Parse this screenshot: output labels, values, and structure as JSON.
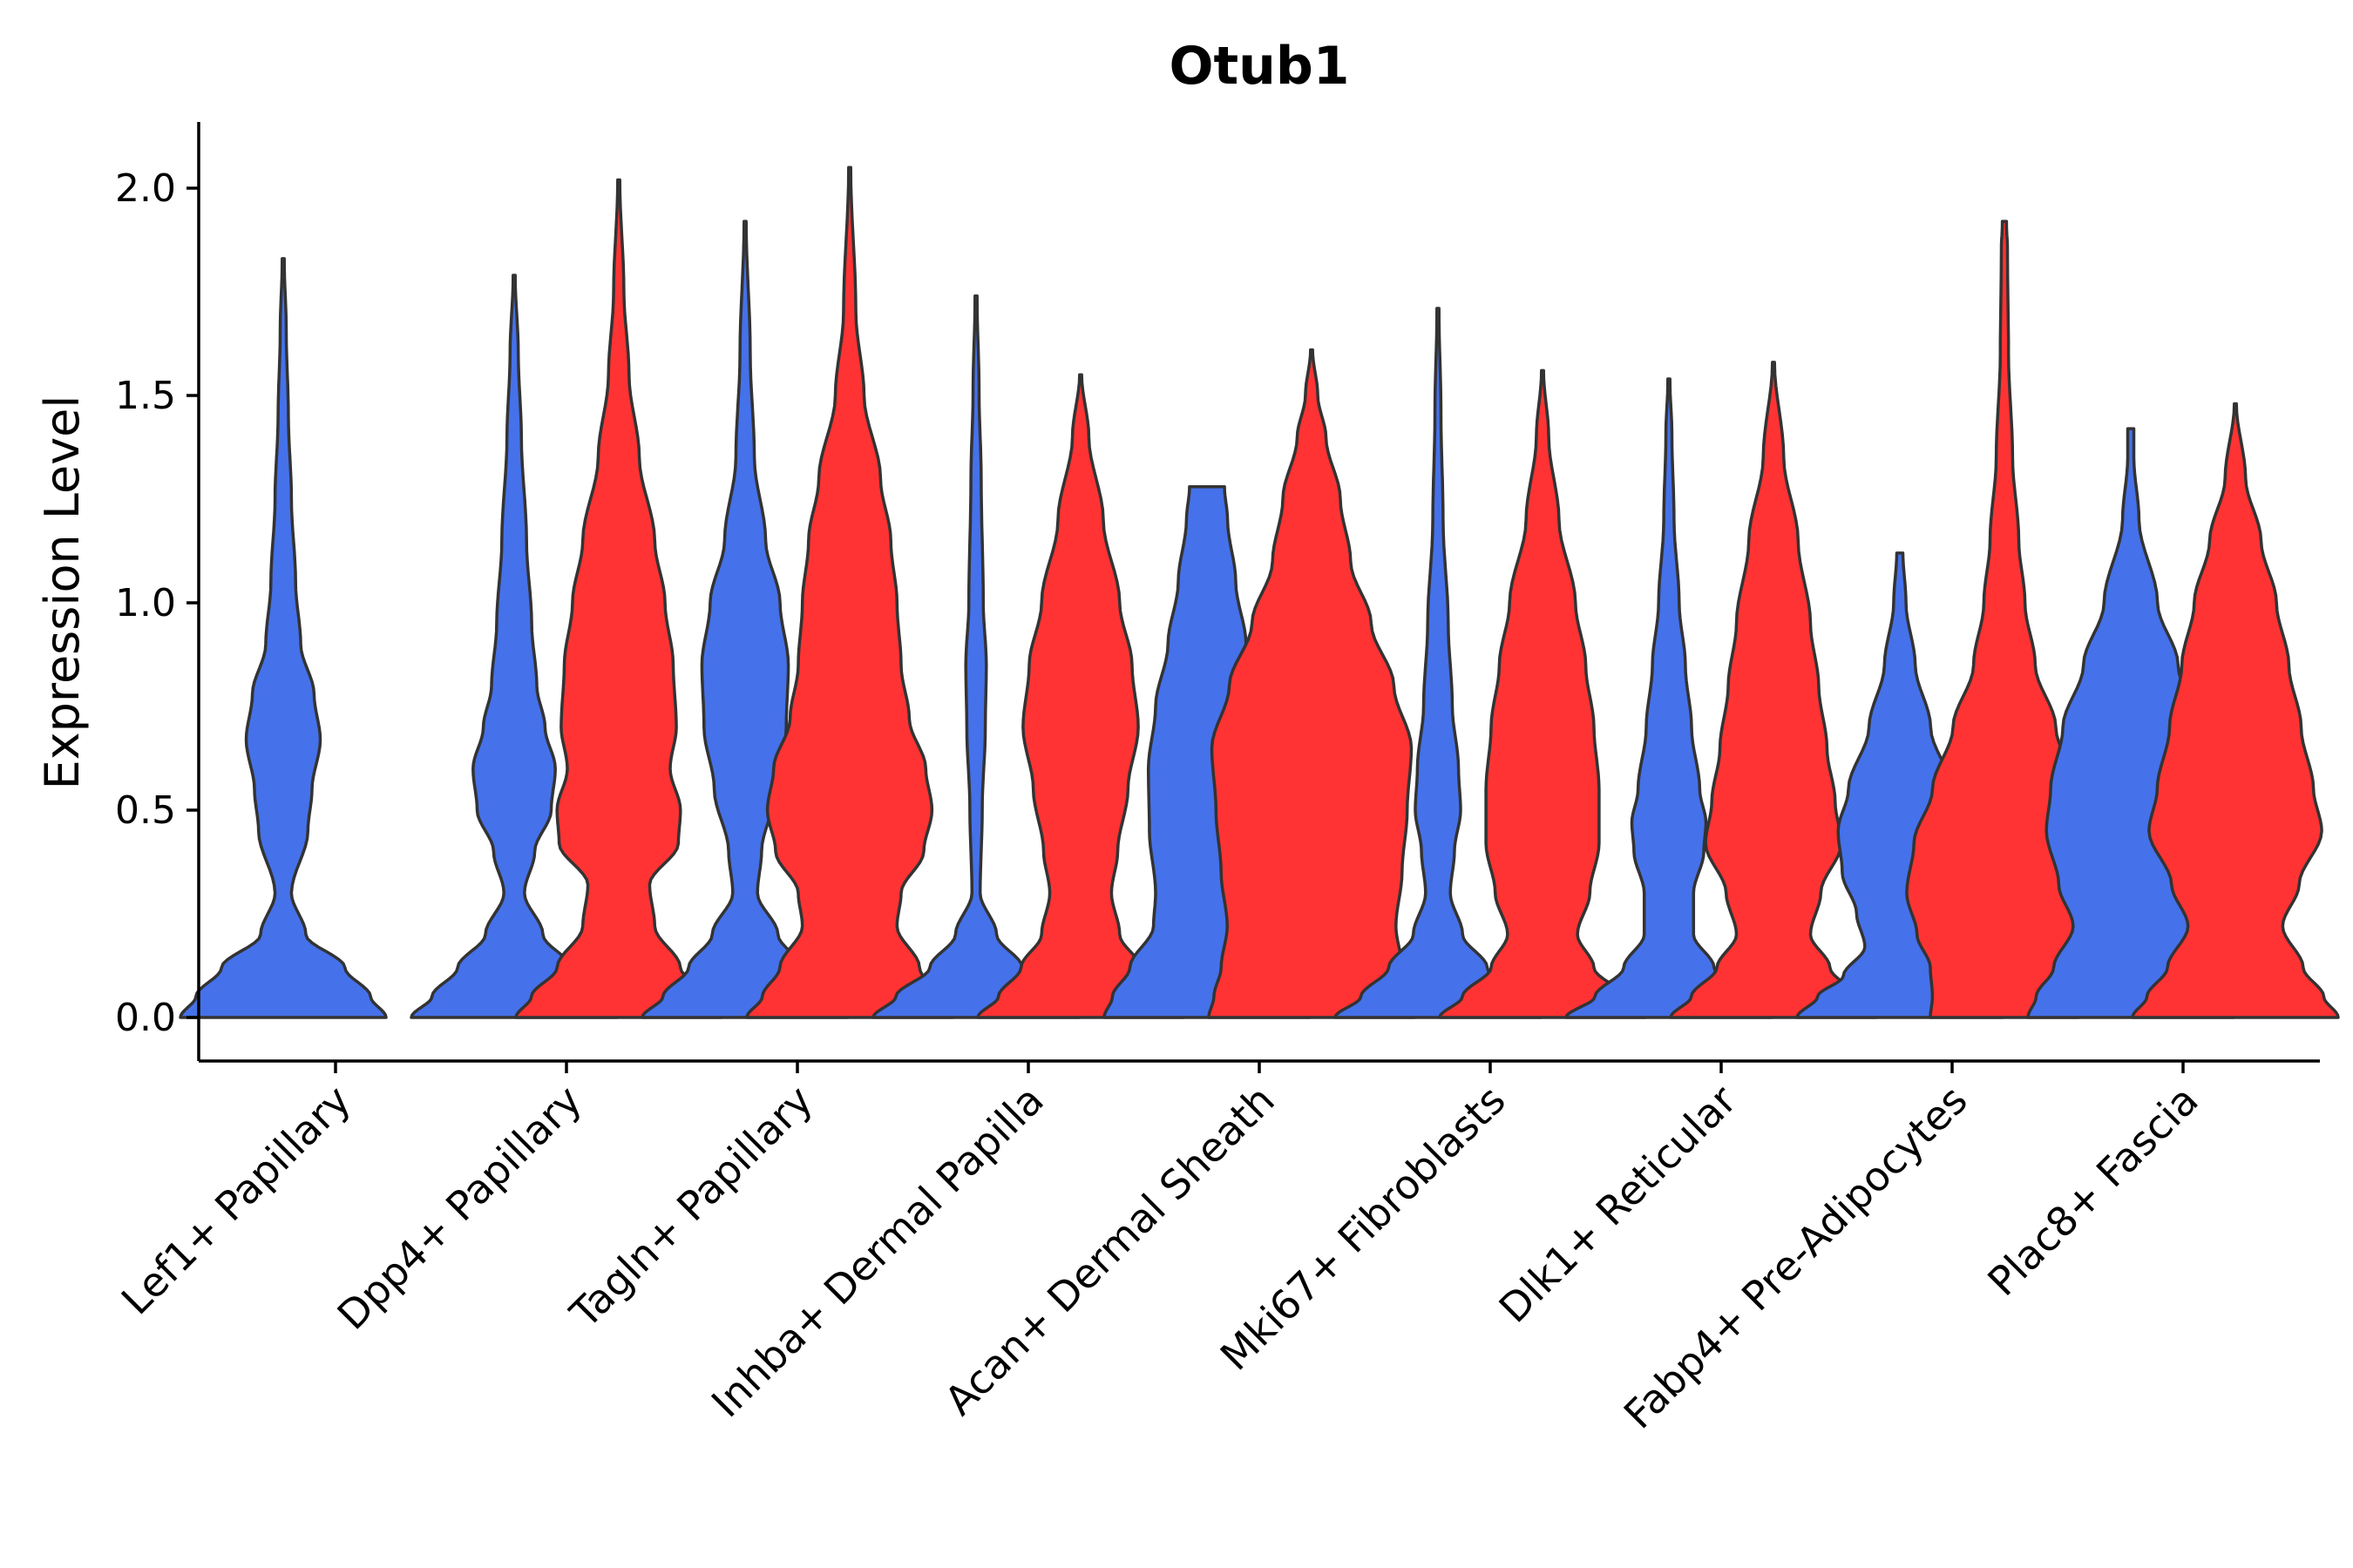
{
  "chart_data": {
    "type": "violin",
    "title": "Otub1",
    "xlabel": "",
    "ylabel": "Expression Level",
    "ylim": [
      -0.1,
      2.15
    ],
    "yticks": [
      0.0,
      0.5,
      1.0,
      1.5,
      2.0
    ],
    "ytick_labels": [
      "0.0",
      "0.5",
      "1.0",
      "1.5",
      "2.0"
    ],
    "series_colors": {
      "group1": "#4571EA",
      "group2": "#FF3333"
    },
    "categories": [
      "Lef1+ Papillary",
      "Dpp4+ Papillary",
      "Tagln+ Papillary",
      "Inhba+ Dermal Papilla",
      "Acan+ Dermal Sheath",
      "Mki67+ Fibroblasts",
      "Dlk1+ Reticular",
      "Fabp4+ Pre-Adipocytes",
      "Plac8+ Fascia"
    ],
    "violins": [
      {
        "category": "Lef1+ Papillary",
        "group": "group1",
        "max": 1.83,
        "profile": [
          [
            0,
            1
          ],
          [
            0.05,
            0.85
          ],
          [
            0.12,
            0.6
          ],
          [
            0.2,
            0.22
          ],
          [
            0.3,
            0.08
          ],
          [
            0.45,
            0.24
          ],
          [
            0.55,
            0.28
          ],
          [
            0.67,
            0.36
          ],
          [
            0.78,
            0.3
          ],
          [
            0.9,
            0.17
          ],
          [
            1.05,
            0.12
          ],
          [
            1.25,
            0.08
          ],
          [
            1.45,
            0.05
          ],
          [
            1.65,
            0.03
          ],
          [
            1.83,
            0.01
          ]
        ]
      },
      {
        "category": "Dpp4+ Papillary",
        "group": "group1",
        "max": 1.79,
        "profile": [
          [
            0,
            1
          ],
          [
            0.05,
            0.8
          ],
          [
            0.12,
            0.55
          ],
          [
            0.2,
            0.28
          ],
          [
            0.3,
            0.1
          ],
          [
            0.4,
            0.2
          ],
          [
            0.5,
            0.36
          ],
          [
            0.6,
            0.4
          ],
          [
            0.7,
            0.3
          ],
          [
            0.8,
            0.22
          ],
          [
            0.95,
            0.17
          ],
          [
            1.15,
            0.12
          ],
          [
            1.4,
            0.07
          ],
          [
            1.6,
            0.04
          ],
          [
            1.79,
            0.01
          ]
        ]
      },
      {
        "category": "Dpp4+ Papillary",
        "group": "group2",
        "max": 2.02,
        "profile": [
          [
            0,
            1
          ],
          [
            0.05,
            0.85
          ],
          [
            0.12,
            0.6
          ],
          [
            0.22,
            0.35
          ],
          [
            0.32,
            0.3
          ],
          [
            0.42,
            0.58
          ],
          [
            0.5,
            0.6
          ],
          [
            0.6,
            0.5
          ],
          [
            0.7,
            0.56
          ],
          [
            0.85,
            0.53
          ],
          [
            1.0,
            0.45
          ],
          [
            1.15,
            0.35
          ],
          [
            1.35,
            0.2
          ],
          [
            1.55,
            0.1
          ],
          [
            1.75,
            0.05
          ],
          [
            2.02,
            0.01
          ]
        ]
      },
      {
        "category": "Tagln+ Papillary",
        "group": "group1",
        "max": 1.92,
        "profile": [
          [
            0,
            1
          ],
          [
            0.05,
            0.8
          ],
          [
            0.12,
            0.55
          ],
          [
            0.2,
            0.32
          ],
          [
            0.3,
            0.12
          ],
          [
            0.4,
            0.16
          ],
          [
            0.55,
            0.3
          ],
          [
            0.7,
            0.4
          ],
          [
            0.85,
            0.42
          ],
          [
            1.0,
            0.34
          ],
          [
            1.15,
            0.2
          ],
          [
            1.35,
            0.09
          ],
          [
            1.6,
            0.05
          ],
          [
            1.92,
            0.01
          ]
        ]
      },
      {
        "category": "Tagln+ Papillary",
        "group": "group2",
        "max": 2.05,
        "profile": [
          [
            0,
            1
          ],
          [
            0.05,
            0.85
          ],
          [
            0.12,
            0.68
          ],
          [
            0.22,
            0.46
          ],
          [
            0.3,
            0.5
          ],
          [
            0.4,
            0.72
          ],
          [
            0.5,
            0.8
          ],
          [
            0.6,
            0.74
          ],
          [
            0.72,
            0.58
          ],
          [
            0.85,
            0.5
          ],
          [
            1.0,
            0.46
          ],
          [
            1.15,
            0.4
          ],
          [
            1.3,
            0.3
          ],
          [
            1.5,
            0.14
          ],
          [
            1.7,
            0.06
          ],
          [
            2.05,
            0.01
          ]
        ]
      },
      {
        "category": "Inhba+ Dermal Papilla",
        "group": "group1",
        "max": 1.74,
        "profile": [
          [
            0,
            1
          ],
          [
            0.05,
            0.78
          ],
          [
            0.12,
            0.45
          ],
          [
            0.2,
            0.2
          ],
          [
            0.3,
            0.04
          ],
          [
            0.5,
            0.06
          ],
          [
            0.7,
            0.09
          ],
          [
            0.85,
            0.1
          ],
          [
            1.0,
            0.07
          ],
          [
            1.3,
            0.05
          ],
          [
            1.5,
            0.03
          ],
          [
            1.74,
            0.01
          ]
        ]
      },
      {
        "category": "Inhba+ Dermal Papilla",
        "group": "group2",
        "max": 1.55,
        "profile": [
          [
            0,
            1
          ],
          [
            0.05,
            0.8
          ],
          [
            0.12,
            0.58
          ],
          [
            0.2,
            0.38
          ],
          [
            0.3,
            0.3
          ],
          [
            0.4,
            0.36
          ],
          [
            0.55,
            0.46
          ],
          [
            0.7,
            0.56
          ],
          [
            0.85,
            0.5
          ],
          [
            1.0,
            0.38
          ],
          [
            1.2,
            0.22
          ],
          [
            1.4,
            0.08
          ],
          [
            1.55,
            0.01
          ]
        ]
      },
      {
        "category": "Acan+ Dermal Sheath",
        "group": "group1",
        "max": 1.28,
        "profile": [
          [
            0,
            1
          ],
          [
            0.05,
            0.92
          ],
          [
            0.12,
            0.75
          ],
          [
            0.22,
            0.52
          ],
          [
            0.3,
            0.5
          ],
          [
            0.45,
            0.56
          ],
          [
            0.6,
            0.57
          ],
          [
            0.75,
            0.5
          ],
          [
            0.9,
            0.38
          ],
          [
            1.05,
            0.28
          ],
          [
            1.2,
            0.2
          ],
          [
            1.28,
            0.17
          ]
        ]
      },
      {
        "category": "Acan+ Dermal Sheath",
        "group": "group2",
        "max": 1.61,
        "profile": [
          [
            0,
            1
          ],
          [
            0.05,
            0.95
          ],
          [
            0.12,
            0.88
          ],
          [
            0.22,
            0.82
          ],
          [
            0.35,
            0.88
          ],
          [
            0.5,
            0.93
          ],
          [
            0.65,
            0.97
          ],
          [
            0.8,
            0.8
          ],
          [
            0.95,
            0.58
          ],
          [
            1.1,
            0.38
          ],
          [
            1.25,
            0.28
          ],
          [
            1.4,
            0.14
          ],
          [
            1.5,
            0.06
          ],
          [
            1.61,
            0.01
          ]
        ]
      },
      {
        "category": "Mki67+ Fibroblasts",
        "group": "group1",
        "max": 1.71,
        "profile": [
          [
            0,
            1
          ],
          [
            0.05,
            0.75
          ],
          [
            0.12,
            0.48
          ],
          [
            0.2,
            0.24
          ],
          [
            0.3,
            0.12
          ],
          [
            0.4,
            0.16
          ],
          [
            0.5,
            0.22
          ],
          [
            0.6,
            0.2
          ],
          [
            0.75,
            0.14
          ],
          [
            0.95,
            0.1
          ],
          [
            1.2,
            0.05
          ],
          [
            1.45,
            0.03
          ],
          [
            1.71,
            0.01
          ]
        ]
      },
      {
        "category": "Mki67+ Fibroblasts",
        "group": "group2",
        "max": 1.56,
        "profile": [
          [
            0,
            1
          ],
          [
            0.05,
            0.78
          ],
          [
            0.12,
            0.5
          ],
          [
            0.2,
            0.34
          ],
          [
            0.3,
            0.46
          ],
          [
            0.42,
            0.55
          ],
          [
            0.55,
            0.55
          ],
          [
            0.7,
            0.5
          ],
          [
            0.85,
            0.42
          ],
          [
            1.0,
            0.32
          ],
          [
            1.2,
            0.16
          ],
          [
            1.4,
            0.06
          ],
          [
            1.56,
            0.01
          ]
        ]
      },
      {
        "category": "Dlk1+ Reticular",
        "group": "group1",
        "max": 1.54,
        "profile": [
          [
            0,
            1
          ],
          [
            0.05,
            0.72
          ],
          [
            0.12,
            0.44
          ],
          [
            0.2,
            0.24
          ],
          [
            0.3,
            0.24
          ],
          [
            0.4,
            0.34
          ],
          [
            0.47,
            0.36
          ],
          [
            0.55,
            0.3
          ],
          [
            0.7,
            0.22
          ],
          [
            0.85,
            0.16
          ],
          [
            1.0,
            0.1
          ],
          [
            1.2,
            0.05
          ],
          [
            1.4,
            0.03
          ],
          [
            1.54,
            0.01
          ]
        ]
      },
      {
        "category": "Dlk1+ Reticular",
        "group": "group2",
        "max": 1.58,
        "profile": [
          [
            0,
            1
          ],
          [
            0.05,
            0.8
          ],
          [
            0.12,
            0.55
          ],
          [
            0.2,
            0.36
          ],
          [
            0.3,
            0.46
          ],
          [
            0.42,
            0.66
          ],
          [
            0.52,
            0.6
          ],
          [
            0.65,
            0.52
          ],
          [
            0.8,
            0.44
          ],
          [
            0.95,
            0.36
          ],
          [
            1.15,
            0.24
          ],
          [
            1.35,
            0.1
          ],
          [
            1.58,
            0.01
          ]
        ]
      },
      {
        "category": "Fabp4+ Pre-Adipocytes",
        "group": "group1",
        "max": 1.12,
        "profile": [
          [
            0,
            1
          ],
          [
            0.05,
            0.8
          ],
          [
            0.1,
            0.55
          ],
          [
            0.17,
            0.34
          ],
          [
            0.25,
            0.42
          ],
          [
            0.35,
            0.56
          ],
          [
            0.45,
            0.6
          ],
          [
            0.55,
            0.5
          ],
          [
            0.7,
            0.3
          ],
          [
            0.85,
            0.15
          ],
          [
            1.0,
            0.06
          ],
          [
            1.12,
            0.03
          ]
        ]
      },
      {
        "category": "Fabp4+ Pre-Adipocytes",
        "group": "group2",
        "max": 1.92,
        "profile": [
          [
            0,
            0.72
          ],
          [
            0.05,
            0.7
          ],
          [
            0.12,
            0.72
          ],
          [
            0.2,
            0.85
          ],
          [
            0.3,
            0.95
          ],
          [
            0.42,
            0.88
          ],
          [
            0.55,
            0.7
          ],
          [
            0.7,
            0.5
          ],
          [
            0.85,
            0.3
          ],
          [
            1.0,
            0.2
          ],
          [
            1.15,
            0.14
          ],
          [
            1.35,
            0.08
          ],
          [
            1.6,
            0.04
          ],
          [
            1.85,
            0.03
          ],
          [
            1.92,
            0.02
          ]
        ]
      },
      {
        "category": "Plac8+ Fascia",
        "group": "group1",
        "max": 1.42,
        "profile": [
          [
            0,
            1
          ],
          [
            0.05,
            0.92
          ],
          [
            0.12,
            0.75
          ],
          [
            0.22,
            0.56
          ],
          [
            0.32,
            0.7
          ],
          [
            0.45,
            0.82
          ],
          [
            0.55,
            0.78
          ],
          [
            0.7,
            0.66
          ],
          [
            0.85,
            0.46
          ],
          [
            1.0,
            0.26
          ],
          [
            1.2,
            0.08
          ],
          [
            1.35,
            0.03
          ],
          [
            1.42,
            0.03
          ]
        ]
      },
      {
        "category": "Plac8+ Fascia",
        "group": "group2",
        "max": 1.48,
        "profile": [
          [
            0,
            1
          ],
          [
            0.05,
            0.86
          ],
          [
            0.12,
            0.66
          ],
          [
            0.22,
            0.46
          ],
          [
            0.32,
            0.62
          ],
          [
            0.45,
            0.84
          ],
          [
            0.55,
            0.76
          ],
          [
            0.7,
            0.64
          ],
          [
            0.85,
            0.52
          ],
          [
            1.0,
            0.4
          ],
          [
            1.15,
            0.25
          ],
          [
            1.3,
            0.1
          ],
          [
            1.48,
            0.01
          ]
        ]
      }
    ]
  }
}
